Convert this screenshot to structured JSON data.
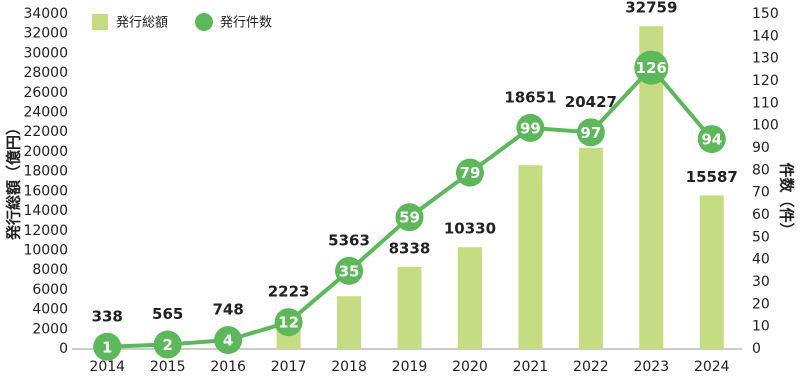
{
  "chart_data": {
    "type": "bar-line",
    "y_label": "発行総額（億円）",
    "y2_label": "件数（件）",
    "categories": [
      "2014",
      "2015",
      "2016",
      "2017",
      "2018",
      "2019",
      "2020",
      "2021",
      "2022",
      "2023",
      "2024"
    ],
    "series": [
      {
        "name": "発行総額",
        "type": "bar",
        "color": "#c6dc83",
        "values": [
          338,
          565,
          748,
          2223,
          5363,
          8338,
          10330,
          18651,
          20427,
          32759,
          15587
        ]
      },
      {
        "name": "発行件数",
        "type": "line",
        "axis": "y2",
        "color": "#5db75b",
        "values": [
          1,
          2,
          4,
          12,
          35,
          59,
          79,
          99,
          97,
          126,
          94
        ]
      }
    ],
    "ylim": [
      0,
      34000
    ],
    "yticks": [
      0,
      2000,
      4000,
      6000,
      8000,
      10000,
      12000,
      14000,
      16000,
      18000,
      20000,
      22000,
      24000,
      26000,
      28000,
      30000,
      32000,
      34000
    ],
    "y2lim": [
      0,
      150
    ],
    "y2ticks": [
      0,
      10,
      20,
      30,
      40,
      50,
      60,
      70,
      80,
      90,
      100,
      110,
      120,
      130,
      140,
      150
    ],
    "grid": false
  }
}
